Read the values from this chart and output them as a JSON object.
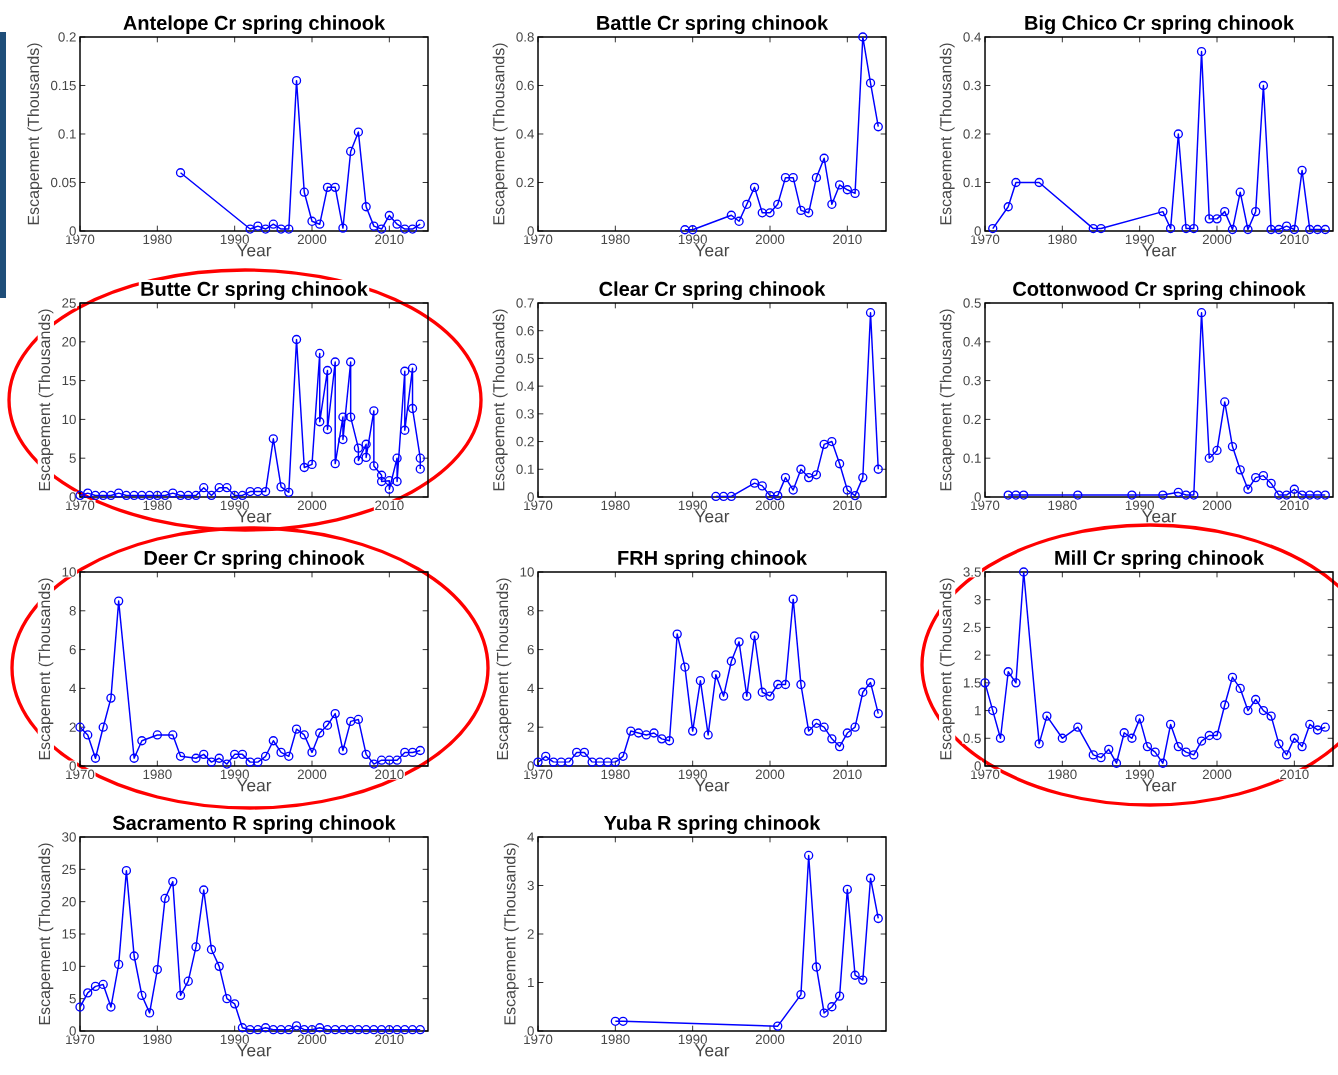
{
  "chart_data": [
    {
      "type": "line",
      "title": "Antelope Cr spring chinook",
      "xlabel": "Year",
      "ylabel": "Escapement (Thousands)",
      "color": "#0000ff",
      "marker": "circle",
      "xlim": [
        1970,
        2015
      ],
      "xticks": [
        1970,
        1980,
        1990,
        2000,
        2010
      ],
      "ylim": [
        0,
        0.2
      ],
      "yticks": [
        0,
        0.05,
        0.1,
        0.15,
        0.2
      ],
      "x": [
        1983,
        1992,
        1993,
        1994,
        1995,
        1996,
        1997,
        1998,
        1999,
        2000,
        2001,
        2002,
        2003,
        2004,
        2005,
        2006,
        2007,
        2008,
        2009,
        2010,
        2011,
        2012,
        2013,
        2014
      ],
      "values": [
        0.06,
        0.002,
        0.005,
        0.002,
        0.007,
        0.002,
        0.002,
        0.155,
        0.04,
        0.01,
        0.007,
        0.045,
        0.045,
        0.003,
        0.082,
        0.102,
        0.025,
        0.005,
        0.002,
        0.016,
        0.007,
        0.002,
        0.002,
        0.007
      ]
    },
    {
      "type": "line",
      "title": "Battle Cr spring chinook",
      "xlabel": "Year",
      "ylabel": "Escapement (Thousands)",
      "color": "#0000ff",
      "marker": "circle",
      "xlim": [
        1970,
        2015
      ],
      "xticks": [
        1970,
        1980,
        1990,
        2000,
        2010
      ],
      "ylim": [
        0,
        0.8
      ],
      "yticks": [
        0,
        0.2,
        0.4,
        0.6,
        0.8
      ],
      "x": [
        1989,
        1990,
        1995,
        1996,
        1997,
        1998,
        1999,
        2000,
        2001,
        2002,
        2003,
        2004,
        2005,
        2006,
        2007,
        2008,
        2009,
        2010,
        2011,
        2012,
        2013,
        2014
      ],
      "values": [
        0.005,
        0.005,
        0.065,
        0.04,
        0.11,
        0.18,
        0.075,
        0.075,
        0.11,
        0.22,
        0.22,
        0.085,
        0.075,
        0.22,
        0.3,
        0.11,
        0.19,
        0.17,
        0.155,
        0.8,
        0.61,
        0.43
      ]
    },
    {
      "type": "line",
      "title": "Big Chico Cr spring chinook",
      "xlabel": "Year",
      "ylabel": "Escapement (Thousands)",
      "color": "#0000ff",
      "marker": "circle",
      "xlim": [
        1970,
        2015
      ],
      "xticks": [
        1970,
        1980,
        1990,
        2000,
        2010
      ],
      "ylim": [
        0,
        0.4
      ],
      "yticks": [
        0,
        0.1,
        0.2,
        0.3,
        0.4
      ],
      "x": [
        1971,
        1973,
        1974,
        1977,
        1984,
        1985,
        1993,
        1994,
        1995,
        1996,
        1997,
        1998,
        1999,
        2000,
        2001,
        2002,
        2003,
        2004,
        2005,
        2006,
        2007,
        2008,
        2009,
        2010,
        2011,
        2012,
        2013,
        2014
      ],
      "values": [
        0.005,
        0.05,
        0.1,
        0.1,
        0.005,
        0.005,
        0.04,
        0.005,
        0.2,
        0.005,
        0.005,
        0.37,
        0.025,
        0.025,
        0.04,
        0.003,
        0.08,
        0.003,
        0.04,
        0.3,
        0.003,
        0.003,
        0.01,
        0.003,
        0.125,
        0.003,
        0.003,
        0.003
      ]
    },
    {
      "type": "line",
      "title": "Butte Cr spring chinook",
      "xlabel": "Year",
      "ylabel": "Escapement (Thousands)",
      "color": "#0000ff",
      "marker": "circle",
      "xlim": [
        1970,
        2015
      ],
      "xticks": [
        1970,
        1980,
        1990,
        2000,
        2010
      ],
      "ylim": [
        0,
        25
      ],
      "yticks": [
        0,
        5,
        10,
        15,
        20,
        25
      ],
      "x": [
        1970,
        1971,
        1972,
        1973,
        1974,
        1975,
        1976,
        1977,
        1978,
        1979,
        1980,
        1981,
        1982,
        1983,
        1984,
        1985,
        1986,
        1987,
        1988,
        1989,
        1990,
        1991,
        1992,
        1993,
        1994,
        1995,
        1996,
        1997,
        1998,
        1999,
        2000,
        2001,
        2001,
        2002,
        2002,
        2003,
        2003,
        2004,
        2004,
        2005,
        2005,
        2006,
        2006,
        2007,
        2007,
        2008,
        2008,
        2009,
        2009,
        2010,
        2010,
        2011,
        2011,
        2012,
        2012,
        2013,
        2013,
        2014,
        2014
      ],
      "values": [
        0.2,
        0.5,
        0.2,
        0.2,
        0.2,
        0.5,
        0.2,
        0.2,
        0.2,
        0.2,
        0.2,
        0.2,
        0.5,
        0.2,
        0.2,
        0.2,
        1.2,
        0.2,
        1.2,
        1.2,
        0.2,
        0.2,
        0.7,
        0.7,
        0.7,
        7.5,
        1.3,
        0.6,
        20.3,
        3.8,
        4.2,
        18.5,
        9.7,
        16.3,
        8.7,
        17.4,
        4.3,
        10.3,
        7.4,
        17.4,
        10.3,
        6.3,
        4.7,
        6.8,
        5.1,
        11.1,
        4.0,
        2.8,
        2.0,
        2.1,
        1.0,
        5.0,
        2.0,
        16.2,
        8.6,
        16.6,
        11.4,
        5.0,
        3.6
      ]
    },
    {
      "type": "line",
      "title": "Clear Cr spring chinook",
      "xlabel": "Year",
      "ylabel": "Escapement (Thousands)",
      "color": "#0000ff",
      "marker": "circle",
      "xlim": [
        1970,
        2015
      ],
      "xticks": [
        1970,
        1980,
        1990,
        2000,
        2010
      ],
      "ylim": [
        0,
        0.7
      ],
      "yticks": [
        0,
        0.1,
        0.2,
        0.3,
        0.4,
        0.5,
        0.6,
        0.7
      ],
      "x": [
        1993,
        1994,
        1995,
        1998,
        1999,
        2000,
        2001,
        2002,
        2003,
        2004,
        2005,
        2006,
        2007,
        2008,
        2009,
        2010,
        2011,
        2012,
        2013,
        2014
      ],
      "values": [
        0.002,
        0.002,
        0.002,
        0.05,
        0.04,
        0.005,
        0.005,
        0.07,
        0.025,
        0.1,
        0.07,
        0.08,
        0.19,
        0.2,
        0.12,
        0.025,
        0.005,
        0.07,
        0.665,
        0.1
      ]
    },
    {
      "type": "line",
      "title": "Cottonwood Cr spring chinook",
      "xlabel": "Year",
      "ylabel": "Escapement (Thousands)",
      "color": "#0000ff",
      "marker": "circle",
      "xlim": [
        1970,
        2015
      ],
      "xticks": [
        1970,
        1980,
        1990,
        2000,
        2010
      ],
      "ylim": [
        0,
        0.5
      ],
      "yticks": [
        0,
        0.1,
        0.2,
        0.3,
        0.4,
        0.5
      ],
      "x": [
        1973,
        1974,
        1975,
        1982,
        1989,
        1993,
        1995,
        1996,
        1997,
        1998,
        1999,
        2000,
        2001,
        2002,
        2003,
        2004,
        2005,
        2006,
        2007,
        2008,
        2009,
        2010,
        2011,
        2012,
        2013,
        2014
      ],
      "values": [
        0.005,
        0.005,
        0.005,
        0.005,
        0.005,
        0.005,
        0.012,
        0.005,
        0.005,
        0.475,
        0.1,
        0.12,
        0.245,
        0.13,
        0.07,
        0.02,
        0.05,
        0.055,
        0.035,
        0.005,
        0.005,
        0.02,
        0.005,
        0.005,
        0.005,
        0.005
      ]
    },
    {
      "type": "line",
      "title": "Deer Cr spring chinook",
      "xlabel": "Year",
      "ylabel": "Escapement (Thousands)",
      "color": "#0000ff",
      "marker": "circle",
      "xlim": [
        1970,
        2015
      ],
      "xticks": [
        1970,
        1980,
        1990,
        2000,
        2010
      ],
      "ylim": [
        0,
        10
      ],
      "yticks": [
        0,
        2,
        4,
        6,
        8,
        10
      ],
      "x": [
        1970,
        1971,
        1972,
        1973,
        1974,
        1975,
        1977,
        1978,
        1980,
        1982,
        1983,
        1985,
        1986,
        1987,
        1988,
        1989,
        1990,
        1991,
        1992,
        1993,
        1994,
        1995,
        1996,
        1997,
        1998,
        1999,
        2000,
        2001,
        2002,
        2003,
        2004,
        2005,
        2006,
        2007,
        2008,
        2009,
        2010,
        2011,
        2012,
        2013,
        2014
      ],
      "values": [
        2.0,
        1.6,
        0.4,
        2.0,
        3.5,
        8.5,
        0.4,
        1.3,
        1.6,
        1.6,
        0.5,
        0.4,
        0.6,
        0.2,
        0.4,
        0.1,
        0.6,
        0.6,
        0.2,
        0.2,
        0.5,
        1.3,
        0.7,
        0.5,
        1.9,
        1.6,
        0.7,
        1.7,
        2.1,
        2.7,
        0.8,
        2.3,
        2.4,
        0.6,
        0.1,
        0.3,
        0.3,
        0.3,
        0.7,
        0.7,
        0.8
      ]
    },
    {
      "type": "line",
      "title": "FRH spring chinook",
      "xlabel": "Year",
      "ylabel": "Escapement (Thousands)",
      "color": "#0000ff",
      "marker": "circle",
      "xlim": [
        1970,
        2015
      ],
      "xticks": [
        1970,
        1980,
        1990,
        2000,
        2010
      ],
      "ylim": [
        0,
        10
      ],
      "yticks": [
        0,
        2,
        4,
        6,
        8,
        10
      ],
      "x": [
        1970,
        1971,
        1972,
        1973,
        1974,
        1975,
        1976,
        1977,
        1978,
        1979,
        1980,
        1981,
        1982,
        1983,
        1984,
        1985,
        1986,
        1987,
        1988,
        1989,
        1990,
        1991,
        1992,
        1993,
        1994,
        1995,
        1996,
        1997,
        1998,
        1999,
        2000,
        2001,
        2002,
        2003,
        2004,
        2005,
        2006,
        2007,
        2008,
        2009,
        2010,
        2011,
        2012,
        2013,
        2014
      ],
      "values": [
        0.2,
        0.5,
        0.2,
        0.2,
        0.2,
        0.7,
        0.7,
        0.2,
        0.2,
        0.2,
        0.2,
        0.5,
        1.8,
        1.7,
        1.6,
        1.7,
        1.4,
        1.3,
        6.8,
        5.1,
        1.8,
        4.4,
        1.6,
        4.7,
        3.6,
        5.4,
        6.4,
        3.6,
        6.7,
        3.8,
        3.6,
        4.2,
        4.2,
        8.6,
        4.2,
        1.8,
        2.2,
        2.0,
        1.4,
        1.0,
        1.7,
        2.0,
        3.8,
        4.3,
        2.7
      ]
    },
    {
      "type": "line",
      "title": "Mill Cr spring chinook",
      "xlabel": "Year",
      "ylabel": "Escapement (Thousands)",
      "color": "#0000ff",
      "marker": "circle",
      "xlim": [
        1970,
        2015
      ],
      "xticks": [
        1970,
        1980,
        1990,
        2000,
        2010
      ],
      "ylim": [
        0,
        3.5
      ],
      "yticks": [
        0,
        0.5,
        1,
        1.5,
        2,
        2.5,
        3,
        3.5
      ],
      "x": [
        1970,
        1971,
        1972,
        1973,
        1974,
        1975,
        1977,
        1978,
        1980,
        1982,
        1984,
        1985,
        1986,
        1987,
        1988,
        1989,
        1990,
        1991,
        1992,
        1993,
        1994,
        1995,
        1996,
        1997,
        1998,
        1999,
        2000,
        2001,
        2002,
        2003,
        2004,
        2005,
        2006,
        2007,
        2008,
        2009,
        2010,
        2011,
        2012,
        2013,
        2014
      ],
      "values": [
        1.5,
        1.0,
        0.5,
        1.7,
        1.5,
        3.5,
        0.4,
        0.9,
        0.5,
        0.7,
        0.2,
        0.15,
        0.3,
        0.05,
        0.6,
        0.5,
        0.85,
        0.35,
        0.25,
        0.05,
        0.75,
        0.35,
        0.25,
        0.2,
        0.45,
        0.55,
        0.55,
        1.1,
        1.6,
        1.4,
        1.0,
        1.2,
        1.0,
        0.9,
        0.4,
        0.2,
        0.5,
        0.35,
        0.75,
        0.65,
        0.7
      ]
    },
    {
      "type": "line",
      "title": "Sacramento R spring chinook",
      "xlabel": "Year",
      "ylabel": "Escapement (Thousands)",
      "color": "#0000ff",
      "marker": "circle",
      "xlim": [
        1970,
        2015
      ],
      "xticks": [
        1970,
        1980,
        1990,
        2000,
        2010
      ],
      "ylim": [
        0,
        30
      ],
      "yticks": [
        0,
        5,
        10,
        15,
        20,
        25,
        30
      ],
      "x": [
        1970,
        1971,
        1972,
        1973,
        1974,
        1975,
        1976,
        1977,
        1978,
        1979,
        1980,
        1981,
        1982,
        1983,
        1984,
        1985,
        1986,
        1987,
        1988,
        1989,
        1990,
        1991,
        1992,
        1993,
        1994,
        1995,
        1996,
        1997,
        1998,
        1999,
        2000,
        2001,
        2002,
        2003,
        2004,
        2005,
        2006,
        2007,
        2008,
        2009,
        2010,
        2011,
        2012,
        2013,
        2014
      ],
      "values": [
        3.7,
        5.9,
        6.9,
        7.2,
        3.7,
        10.3,
        24.8,
        11.6,
        5.5,
        2.8,
        9.5,
        20.5,
        23.1,
        5.5,
        7.7,
        13.0,
        21.8,
        12.6,
        10.0,
        5.0,
        4.2,
        0.5,
        0.2,
        0.2,
        0.5,
        0.2,
        0.2,
        0.2,
        0.8,
        0.2,
        0.2,
        0.5,
        0.2,
        0.2,
        0.2,
        0.2,
        0.2,
        0.2,
        0.2,
        0.2,
        0.2,
        0.2,
        0.2,
        0.2,
        0.2
      ]
    },
    {
      "type": "line",
      "title": "Yuba R spring chinook",
      "xlabel": "Year",
      "ylabel": "Escapement (Thousands)",
      "color": "#0000ff",
      "marker": "circle",
      "xlim": [
        1970,
        2015
      ],
      "xticks": [
        1970,
        1980,
        1990,
        2000,
        2010
      ],
      "ylim": [
        0,
        4
      ],
      "yticks": [
        0,
        1,
        2,
        3,
        4
      ],
      "x": [
        1980,
        1981,
        2001,
        2004,
        2005,
        2006,
        2007,
        2008,
        2009,
        2010,
        2011,
        2012,
        2013,
        2014
      ],
      "values": [
        0.2,
        0.2,
        0.1,
        0.75,
        3.62,
        1.32,
        0.37,
        0.5,
        0.72,
        2.92,
        1.15,
        1.05,
        3.15,
        2.32
      ]
    }
  ]
}
